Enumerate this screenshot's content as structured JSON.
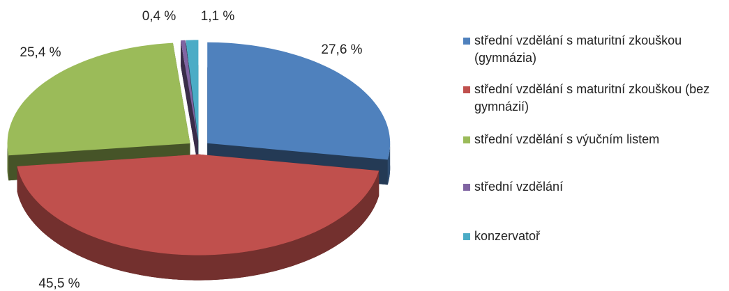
{
  "chart_data": {
    "type": "pie",
    "categories": [
      "střední vzdělání s maturitní zkouškou (gymnázia)",
      "střední vzdělání s maturitní zkouškou (bez gymnázií)",
      "střední vzdělání s výučním listem",
      "střední vzdělání",
      "konzervatoř"
    ],
    "values": [
      27.6,
      45.5,
      25.4,
      0.4,
      1.1
    ],
    "value_labels": [
      "27,6 %",
      "45,5 %",
      "25,4 %",
      "0,4 %",
      "1,1 %"
    ],
    "colors": [
      "#4f81bd",
      "#c0504d",
      "#9bbb59",
      "#8064a2",
      "#4bacc6"
    ],
    "legend": "right"
  }
}
